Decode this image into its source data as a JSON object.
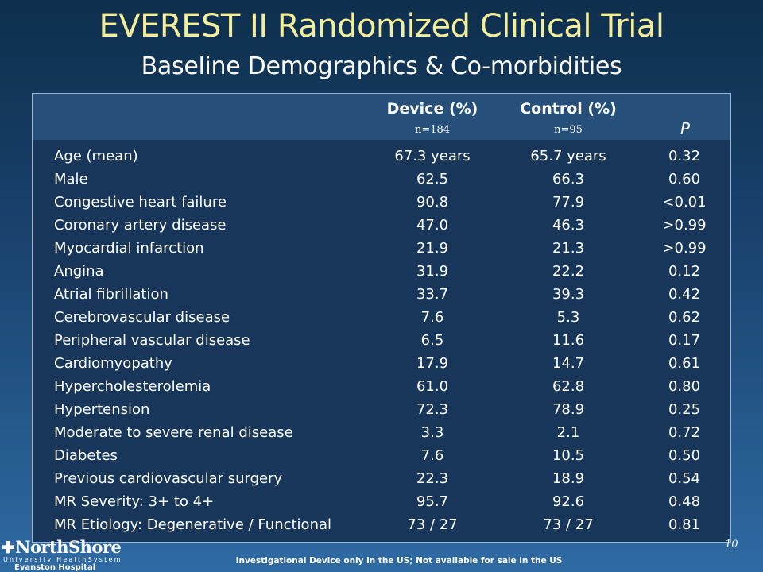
{
  "slide": {
    "title": "EVEREST II Randomized Clinical Trial",
    "subtitle": "Baseline Demographics & Co-morbidities",
    "page_number": "10",
    "footnote": "Investigational Device only in the US; Not available for sale in the US"
  },
  "logo": {
    "name": "NorthShore",
    "tagline": "University HealthSystem",
    "hospital": "Evanston Hospital"
  },
  "table": {
    "columns": {
      "device": {
        "label": "Device (%)",
        "n": "n=184"
      },
      "control": {
        "label": "Control (%)",
        "n": "n=95"
      },
      "p": {
        "label": "P"
      }
    },
    "rows": [
      {
        "label": "Age (mean)",
        "device": "67.3 years",
        "control": "65.7 years",
        "p": "0.32"
      },
      {
        "label": "Male",
        "device": "62.5",
        "control": "66.3",
        "p": "0.60"
      },
      {
        "label": "Congestive heart failure",
        "device": "90.8",
        "control": "77.9",
        "p": "<0.01"
      },
      {
        "label": "Coronary artery disease",
        "device": "47.0",
        "control": "46.3",
        "p": ">0.99"
      },
      {
        "label": "Myocardial infarction",
        "device": "21.9",
        "control": "21.3",
        "p": ">0.99"
      },
      {
        "label": "Angina",
        "device": "31.9",
        "control": "22.2",
        "p": "0.12"
      },
      {
        "label": "Atrial fibrillation",
        "device": "33.7",
        "control": "39.3",
        "p": "0.42"
      },
      {
        "label": "Cerebrovascular disease",
        "device": "7.6",
        "control": "5.3",
        "p": "0.62"
      },
      {
        "label": "Peripheral vascular disease",
        "device": "6.5",
        "control": "11.6",
        "p": "0.17"
      },
      {
        "label": "Cardiomyopathy",
        "device": "17.9",
        "control": "14.7",
        "p": "0.61"
      },
      {
        "label": "Hypercholesterolemia",
        "device": "61.0",
        "control": "62.8",
        "p": "0.80"
      },
      {
        "label": "Hypertension",
        "device": "72.3",
        "control": "78.9",
        "p": "0.25"
      },
      {
        "label": "Moderate to severe renal disease",
        "device": "3.3",
        "control": "2.1",
        "p": "0.72"
      },
      {
        "label": "Diabetes",
        "device": "7.6",
        "control": "10.5",
        "p": "0.50"
      },
      {
        "label": "Previous cardiovascular surgery",
        "device": "22.3",
        "control": "18.9",
        "p": "0.54"
      },
      {
        "label": "MR Severity: 3+ to 4+",
        "device": "95.7",
        "control": "92.6",
        "p": "0.48"
      },
      {
        "label": "MR Etiology: Degenerative / Functional",
        "device": "73 / 27",
        "control": "73 / 27",
        "p": "0.81"
      }
    ]
  },
  "colors": {
    "title": "#f4ee9a",
    "table_header_bg": "#26507a",
    "table_body_bg": "#17365a",
    "text": "#ffffff"
  }
}
